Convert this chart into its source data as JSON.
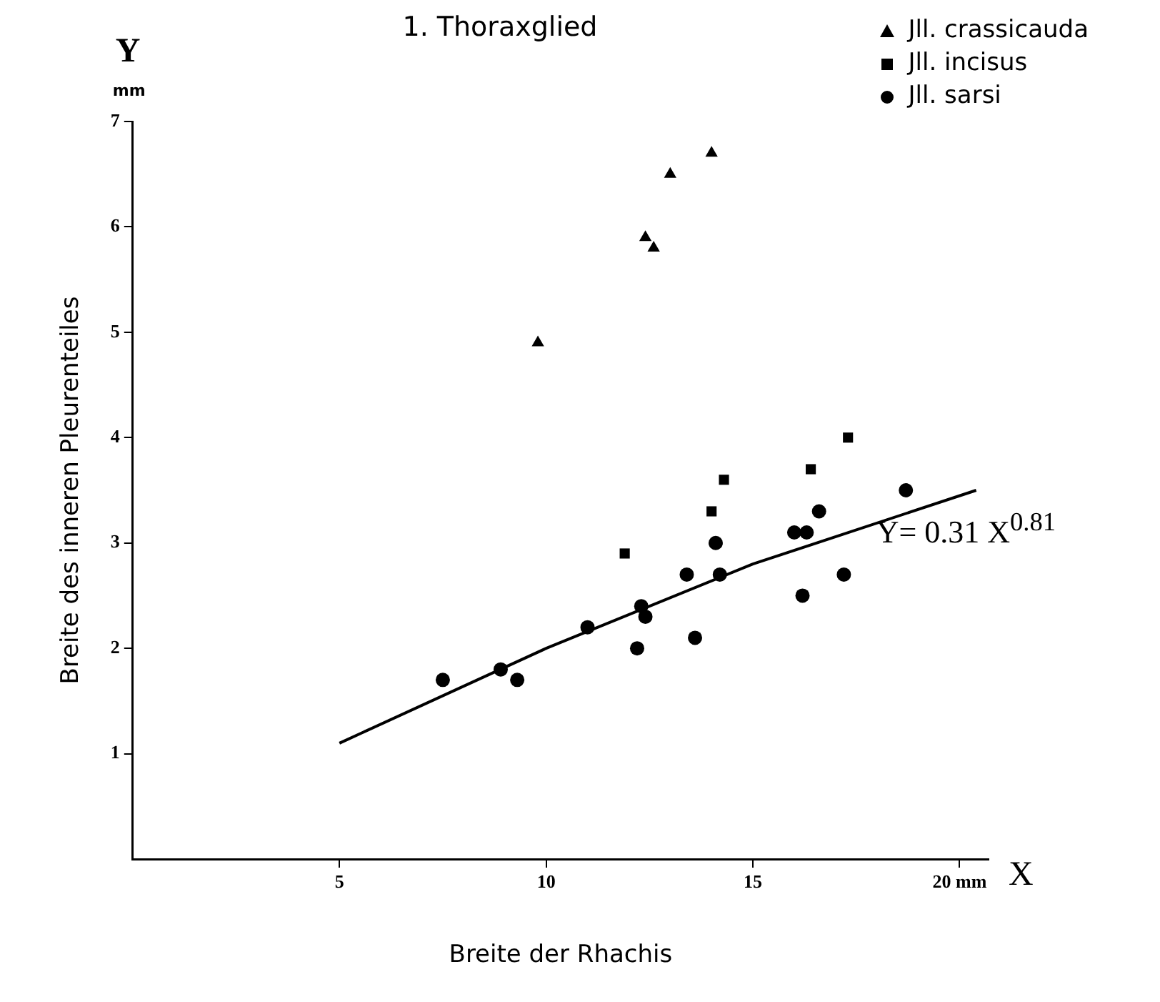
{
  "chart_data": {
    "type": "scatter",
    "title": "1. Thoraxglied",
    "xlabel": "Breite der Rhachis",
    "ylabel": "Breite des inneren Pleurenteiles",
    "xlim": [
      0,
      20.7
    ],
    "ylim": [
      0,
      7
    ],
    "xticks": [
      5,
      10,
      15,
      {
        "value": 20,
        "label": "20 mm"
      }
    ],
    "yticks": [
      1,
      2,
      3,
      4,
      5,
      6,
      7
    ],
    "grid": false,
    "legend": "top right",
    "annotations": [
      "Y",
      "mm",
      "X",
      "Y= 0.31 X$^{0.81}$"
    ],
    "series": [
      {
        "name": "Jll. crassicauda",
        "color": "#000000",
        "marker": "triangle",
        "x": [
          9.8,
          12.4,
          12.6,
          13.0,
          14.0
        ],
        "values": [
          4.9,
          5.9,
          5.8,
          6.5,
          6.7
        ]
      },
      {
        "name": "Jll. incisus",
        "color": "#000000",
        "marker": "square",
        "x": [
          11.9,
          14.0,
          14.3,
          16.4,
          17.3
        ],
        "values": [
          2.9,
          3.3,
          3.6,
          3.7,
          4.0
        ]
      },
      {
        "name": "Jll. sarsi",
        "color": "#000000",
        "marker": "circle",
        "x": [
          7.5,
          8.9,
          9.3,
          11.0,
          12.2,
          12.3,
          12.4,
          13.4,
          13.6,
          14.1,
          14.2,
          16.0,
          16.3,
          16.6,
          16.2,
          17.2,
          18.7
        ],
        "values": [
          1.7,
          1.8,
          1.7,
          2.2,
          2.0,
          2.4,
          2.3,
          2.7,
          2.1,
          3.0,
          2.7,
          3.1,
          3.1,
          3.3,
          2.5,
          2.7,
          3.5
        ]
      },
      {
        "type": "line",
        "color": "#000000",
        "marker": "none",
        "x": [
          5,
          10,
          15,
          20.4
        ],
        "values": [
          1.1,
          2.0,
          2.8,
          3.5
        ]
      }
    ]
  }
}
